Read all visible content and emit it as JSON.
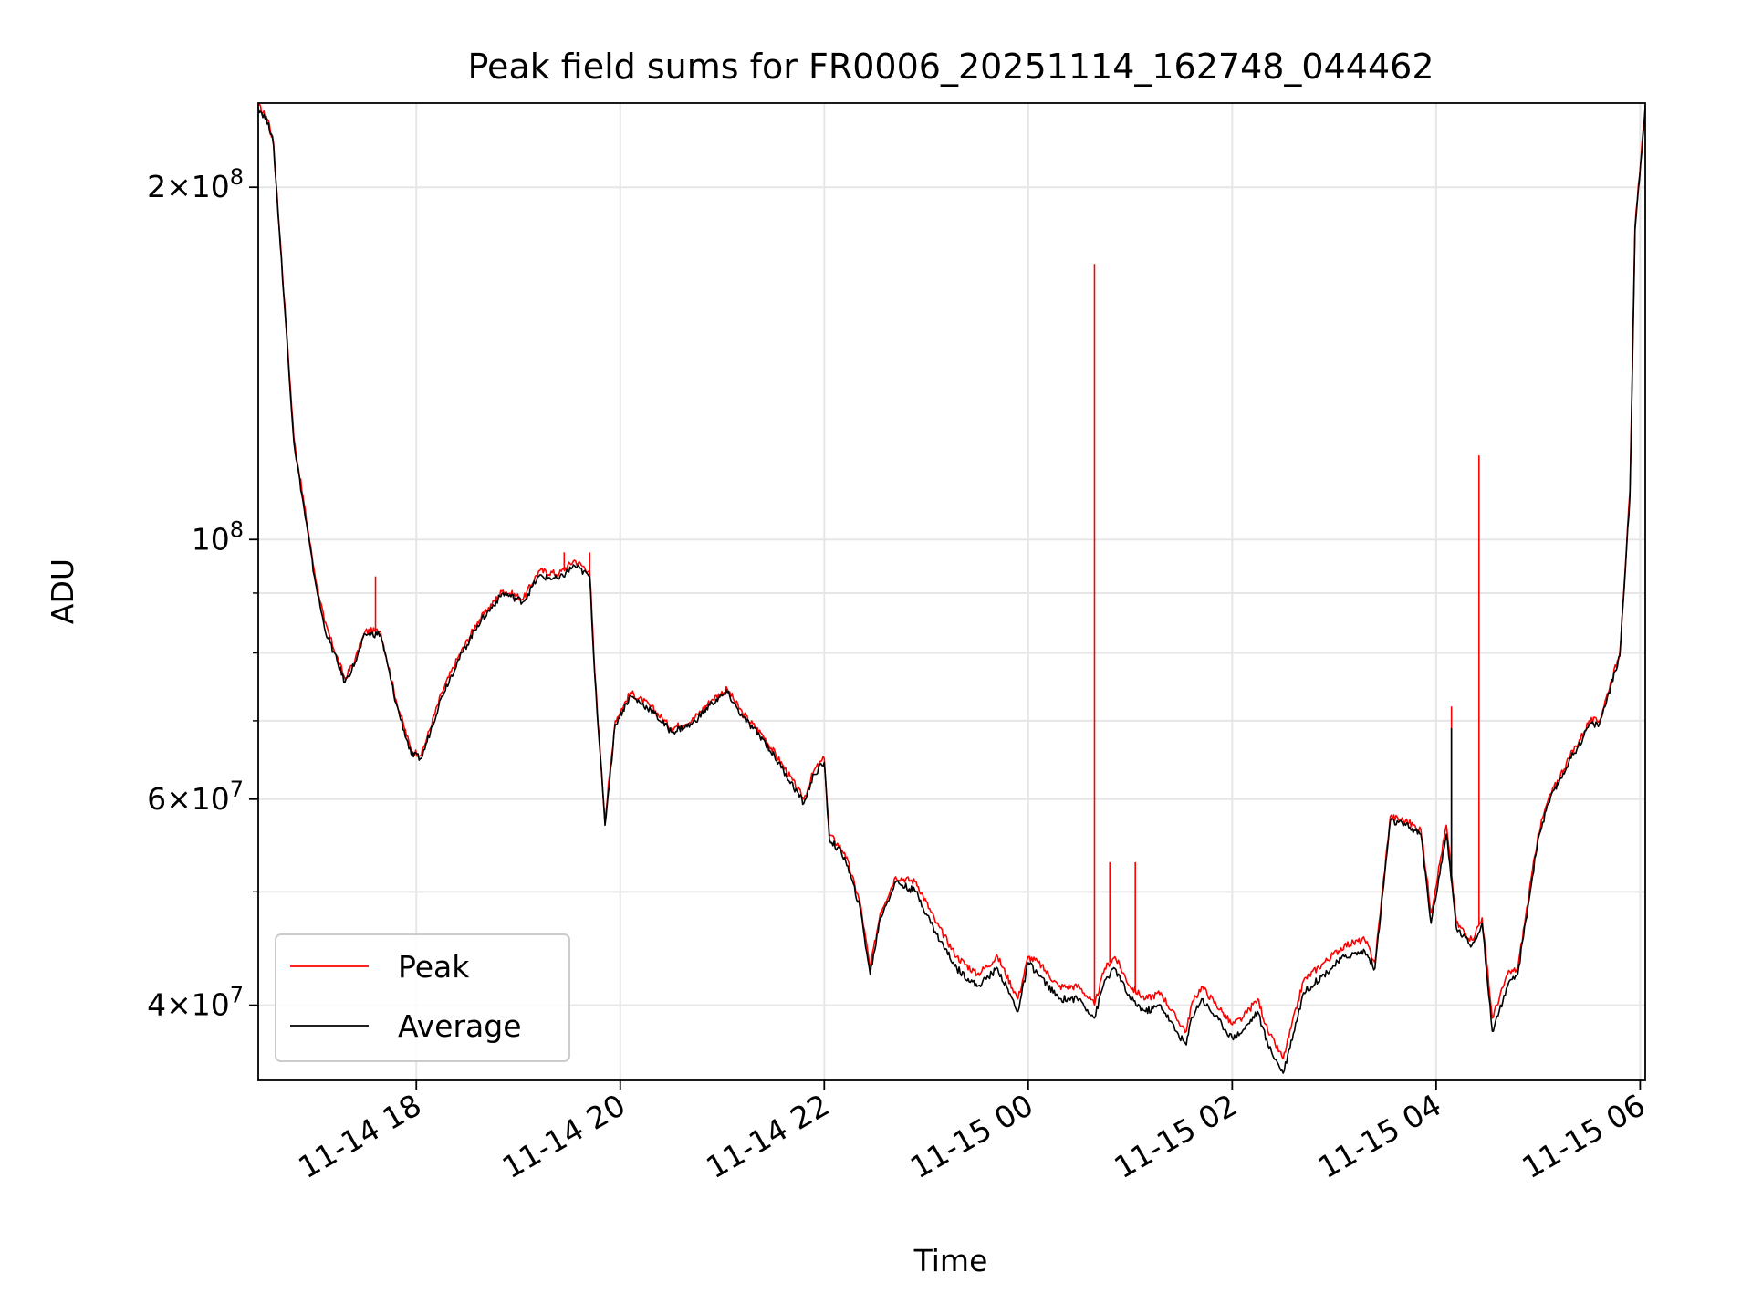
{
  "chart_data": {
    "type": "line",
    "title": "Peak field sums for FR0006_20251114_162748_044462",
    "xlabel": "Time",
    "ylabel": "ADU",
    "x_unit": "hours since 11-14 16:00",
    "xlim": [
      16.45,
      30.05
    ],
    "ylim": [
      34500000,
      236000000
    ],
    "yscale": "log",
    "grid": true,
    "legend_position": "lower-left",
    "x_ticks": [
      {
        "value": 18,
        "label": "11-14 18"
      },
      {
        "value": 20,
        "label": "11-14 20"
      },
      {
        "value": 22,
        "label": "11-14 22"
      },
      {
        "value": 24,
        "label": "11-15 00"
      },
      {
        "value": 26,
        "label": "11-15 02"
      },
      {
        "value": 28,
        "label": "11-15 04"
      },
      {
        "value": 30,
        "label": "11-15 06"
      }
    ],
    "y_major_ticks": [
      {
        "value": 40000000,
        "mantissa": "4",
        "exponent": "7"
      },
      {
        "value": 60000000,
        "mantissa": "6",
        "exponent": "7"
      },
      {
        "value": 100000000,
        "mantissa": "",
        "exponent": "8"
      },
      {
        "value": 200000000,
        "mantissa": "2",
        "exponent": "8"
      }
    ],
    "y_minor_ticks": [
      50000000,
      70000000,
      80000000,
      90000000,
      300000000
    ],
    "series": [
      {
        "name": "Peak",
        "color": "#ff0000",
        "x": [
          16.45,
          16.55,
          16.6,
          16.8,
          17.0,
          17.1,
          17.3,
          17.4,
          17.5,
          17.65,
          17.8,
          17.95,
          18.05,
          18.25,
          18.4,
          18.6,
          18.85,
          19.05,
          19.2,
          19.4,
          19.55,
          19.7,
          19.75,
          19.85,
          19.95,
          20.1,
          20.3,
          20.5,
          20.7,
          20.9,
          21.05,
          21.2,
          21.4,
          21.6,
          21.8,
          21.9,
          22.0,
          22.05,
          22.2,
          22.35,
          22.45,
          22.55,
          22.7,
          22.9,
          23.1,
          23.3,
          23.5,
          23.7,
          23.9,
          24.0,
          24.1,
          24.3,
          24.5,
          24.65,
          24.75,
          24.85,
          25.0,
          25.15,
          25.3,
          25.45,
          25.55,
          25.6,
          25.7,
          25.9,
          26.0,
          26.1,
          26.25,
          26.35,
          26.5,
          26.7,
          26.9,
          27.1,
          27.3,
          27.4,
          27.55,
          27.7,
          27.85,
          27.95,
          28.1,
          28.2,
          28.35,
          28.45,
          28.55,
          28.7,
          28.8,
          29.0,
          29.1,
          29.3,
          29.45,
          29.5,
          29.6,
          29.8,
          29.9,
          29.95,
          30.05
        ],
        "y": [
          235000000,
          228000000,
          218000000,
          122000000,
          94000000,
          85000000,
          76000000,
          79000000,
          83500000,
          83500000,
          73000000,
          66000000,
          65500000,
          74000000,
          79000000,
          85000000,
          90500000,
          89000000,
          94000000,
          93500000,
          96000000,
          94000000,
          77000000,
          57500000,
          70000000,
          74000000,
          72000000,
          69000000,
          70000000,
          73000000,
          74500000,
          71000000,
          68000000,
          64000000,
          60000000,
          63500000,
          65000000,
          56000000,
          54000000,
          49000000,
          43000000,
          48000000,
          51500000,
          51000000,
          47000000,
          44000000,
          42500000,
          44000000,
          40500000,
          44000000,
          43500000,
          41500000,
          41500000,
          40000000,
          43000000,
          44000000,
          41500000,
          40500000,
          41000000,
          39000000,
          38000000,
          40000000,
          41500000,
          39500000,
          38500000,
          39000000,
          40500000,
          38000000,
          36000000,
          42000000,
          43500000,
          45000000,
          45500000,
          43500000,
          58000000,
          57500000,
          56500000,
          48000000,
          57000000,
          47000000,
          45500000,
          47500000,
          39000000,
          42500000,
          43000000,
          56000000,
          60000000,
          65000000,
          68500000,
          70000000,
          70000000,
          80000000,
          110000000,
          185000000,
          235000000
        ]
      },
      {
        "name": "Average",
        "color": "#000000",
        "x": [
          16.45,
          16.55,
          16.6,
          16.8,
          17.0,
          17.1,
          17.3,
          17.4,
          17.5,
          17.65,
          17.8,
          17.95,
          18.05,
          18.25,
          18.4,
          18.6,
          18.85,
          19.05,
          19.2,
          19.4,
          19.55,
          19.7,
          19.75,
          19.85,
          19.95,
          20.1,
          20.3,
          20.5,
          20.7,
          20.9,
          21.05,
          21.2,
          21.4,
          21.6,
          21.8,
          21.9,
          22.0,
          22.05,
          22.2,
          22.35,
          22.45,
          22.55,
          22.7,
          22.9,
          23.1,
          23.3,
          23.5,
          23.7,
          23.9,
          24.0,
          24.1,
          24.3,
          24.5,
          24.65,
          24.75,
          24.85,
          25.0,
          25.15,
          25.3,
          25.45,
          25.55,
          25.6,
          25.7,
          25.9,
          26.0,
          26.1,
          26.25,
          26.35,
          26.5,
          26.7,
          26.9,
          27.1,
          27.3,
          27.4,
          27.55,
          27.7,
          27.85,
          27.95,
          28.1,
          28.2,
          28.35,
          28.45,
          28.55,
          28.7,
          28.8,
          29.0,
          29.1,
          29.3,
          29.45,
          29.5,
          29.6,
          29.8,
          29.9,
          29.95,
          30.05
        ],
        "y": [
          234000000,
          227000000,
          217000000,
          121000000,
          93000000,
          84000000,
          75500000,
          78500000,
          83000000,
          83000000,
          72500000,
          65500000,
          65000000,
          73500000,
          78500000,
          84500000,
          90000000,
          88500000,
          93000000,
          92500000,
          95000000,
          93000000,
          76500000,
          57000000,
          69500000,
          73500000,
          71500000,
          68500000,
          69500000,
          72500000,
          74000000,
          70500000,
          67500000,
          63500000,
          59500000,
          63000000,
          64500000,
          55500000,
          53500000,
          48500000,
          42500000,
          47500000,
          51000000,
          50000000,
          46000000,
          43000000,
          41500000,
          43000000,
          39500000,
          43500000,
          42500000,
          40500000,
          40500000,
          39000000,
          42000000,
          43000000,
          40500000,
          39500000,
          40000000,
          38000000,
          37000000,
          39000000,
          40500000,
          38500000,
          37500000,
          38000000,
          39500000,
          37000000,
          35000000,
          41000000,
          42500000,
          44000000,
          44500000,
          43000000,
          57500000,
          57000000,
          56000000,
          47000000,
          56000000,
          46500000,
          45000000,
          47000000,
          38000000,
          41500000,
          42500000,
          55500000,
          59500000,
          64500000,
          68000000,
          69500000,
          69500000,
          79500000,
          109000000,
          184000000,
          234000000
        ]
      }
    ],
    "spikes": [
      {
        "series": "Peak",
        "x": 17.6,
        "y": 93000000
      },
      {
        "series": "Peak",
        "x": 19.45,
        "y": 97500000
      },
      {
        "series": "Peak",
        "x": 19.7,
        "y": 97500000
      },
      {
        "series": "Peak",
        "x": 24.65,
        "y": 172000000
      },
      {
        "series": "Peak",
        "x": 24.8,
        "y": 53000000
      },
      {
        "series": "Peak",
        "x": 24.9,
        "y": 43000000
      },
      {
        "series": "Peak",
        "x": 25.05,
        "y": 53000000
      },
      {
        "series": "Peak",
        "x": 28.15,
        "y": 72000000
      },
      {
        "series": "Average",
        "x": 28.15,
        "y": 69000000
      },
      {
        "series": "Peak",
        "x": 28.42,
        "y": 118000000
      }
    ]
  }
}
